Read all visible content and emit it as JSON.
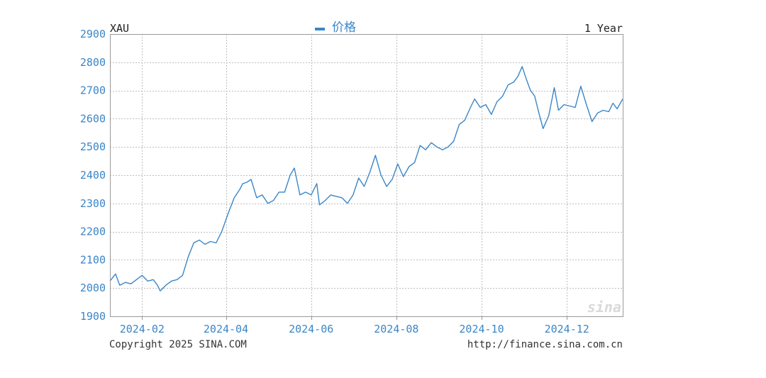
{
  "chart_data": {
    "type": "line",
    "symbol": "XAU",
    "period": "1 Year",
    "legend": "价格",
    "copyright": "Copyright 2025 SINA.COM",
    "url": "http://finance.sina.com.cn",
    "watermark": "sina",
    "ylim": [
      1900,
      2900
    ],
    "yticks": [
      "1900",
      "2000",
      "2100",
      "2200",
      "2300",
      "2400",
      "2500",
      "2600",
      "2700",
      "2800",
      "2900"
    ],
    "xrange": [
      "2024-01-09",
      "2025-01-10"
    ],
    "xticks": [
      {
        "date": "2024-02-01",
        "label": "2024-02"
      },
      {
        "date": "2024-04-01",
        "label": "2024-04"
      },
      {
        "date": "2024-06-01",
        "label": "2024-06"
      },
      {
        "date": "2024-08-01",
        "label": "2024-08"
      },
      {
        "date": "2024-10-01",
        "label": "2024-10"
      },
      {
        "date": "2024-12-01",
        "label": "2024-12"
      }
    ],
    "grid": true,
    "line_color": "#3a86c8",
    "series": [
      {
        "points": [
          [
            "2024-01-09",
            2025
          ],
          [
            "2024-01-13",
            2050
          ],
          [
            "2024-01-16",
            2010
          ],
          [
            "2024-01-20",
            2020
          ],
          [
            "2024-01-24",
            2015
          ],
          [
            "2024-01-28",
            2030
          ],
          [
            "2024-02-01",
            2045
          ],
          [
            "2024-02-05",
            2025
          ],
          [
            "2024-02-09",
            2030
          ],
          [
            "2024-02-12",
            2010
          ],
          [
            "2024-02-14",
            1990
          ],
          [
            "2024-02-18",
            2010
          ],
          [
            "2024-02-22",
            2025
          ],
          [
            "2024-02-26",
            2030
          ],
          [
            "2024-03-01",
            2045
          ],
          [
            "2024-03-05",
            2110
          ],
          [
            "2024-03-09",
            2160
          ],
          [
            "2024-03-13",
            2170
          ],
          [
            "2024-03-17",
            2155
          ],
          [
            "2024-03-21",
            2165
          ],
          [
            "2024-03-25",
            2160
          ],
          [
            "2024-03-29",
            2200
          ],
          [
            "2024-04-03",
            2270
          ],
          [
            "2024-04-07",
            2320
          ],
          [
            "2024-04-11",
            2350
          ],
          [
            "2024-04-13",
            2370
          ],
          [
            "2024-04-16",
            2375
          ],
          [
            "2024-04-19",
            2385
          ],
          [
            "2024-04-23",
            2320
          ],
          [
            "2024-04-27",
            2330
          ],
          [
            "2024-05-01",
            2300
          ],
          [
            "2024-05-05",
            2310
          ],
          [
            "2024-05-09",
            2340
          ],
          [
            "2024-05-13",
            2340
          ],
          [
            "2024-05-17",
            2400
          ],
          [
            "2024-05-20",
            2425
          ],
          [
            "2024-05-24",
            2330
          ],
          [
            "2024-05-28",
            2340
          ],
          [
            "2024-06-01",
            2330
          ],
          [
            "2024-06-05",
            2370
          ],
          [
            "2024-06-07",
            2295
          ],
          [
            "2024-06-11",
            2310
          ],
          [
            "2024-06-15",
            2330
          ],
          [
            "2024-06-19",
            2325
          ],
          [
            "2024-06-23",
            2320
          ],
          [
            "2024-06-27",
            2300
          ],
          [
            "2024-07-01",
            2330
          ],
          [
            "2024-07-05",
            2390
          ],
          [
            "2024-07-09",
            2360
          ],
          [
            "2024-07-13",
            2410
          ],
          [
            "2024-07-17",
            2470
          ],
          [
            "2024-07-21",
            2400
          ],
          [
            "2024-07-25",
            2360
          ],
          [
            "2024-07-29",
            2385
          ],
          [
            "2024-08-02",
            2440
          ],
          [
            "2024-08-06",
            2395
          ],
          [
            "2024-08-10",
            2430
          ],
          [
            "2024-08-14",
            2445
          ],
          [
            "2024-08-18",
            2505
          ],
          [
            "2024-08-22",
            2490
          ],
          [
            "2024-08-26",
            2515
          ],
          [
            "2024-08-30",
            2500
          ],
          [
            "2024-09-03",
            2490
          ],
          [
            "2024-09-07",
            2500
          ],
          [
            "2024-09-11",
            2520
          ],
          [
            "2024-09-15",
            2580
          ],
          [
            "2024-09-19",
            2595
          ],
          [
            "2024-09-23",
            2640
          ],
          [
            "2024-09-26",
            2670
          ],
          [
            "2024-09-30",
            2640
          ],
          [
            "2024-10-04",
            2650
          ],
          [
            "2024-10-08",
            2615
          ],
          [
            "2024-10-12",
            2660
          ],
          [
            "2024-10-16",
            2680
          ],
          [
            "2024-10-20",
            2720
          ],
          [
            "2024-10-24",
            2730
          ],
          [
            "2024-10-27",
            2750
          ],
          [
            "2024-10-30",
            2785
          ],
          [
            "2024-11-02",
            2740
          ],
          [
            "2024-11-05",
            2700
          ],
          [
            "2024-11-08",
            2680
          ],
          [
            "2024-11-11",
            2620
          ],
          [
            "2024-11-14",
            2565
          ],
          [
            "2024-11-18",
            2610
          ],
          [
            "2024-11-22",
            2710
          ],
          [
            "2024-11-25",
            2630
          ],
          [
            "2024-11-29",
            2650
          ],
          [
            "2024-12-03",
            2645
          ],
          [
            "2024-12-07",
            2640
          ],
          [
            "2024-12-11",
            2715
          ],
          [
            "2024-12-15",
            2650
          ],
          [
            "2024-12-19",
            2590
          ],
          [
            "2024-12-23",
            2620
          ],
          [
            "2024-12-27",
            2630
          ],
          [
            "2024-12-31",
            2625
          ],
          [
            "2025-01-03",
            2655
          ],
          [
            "2025-01-06",
            2635
          ],
          [
            "2025-01-10",
            2670
          ]
        ]
      }
    ]
  }
}
